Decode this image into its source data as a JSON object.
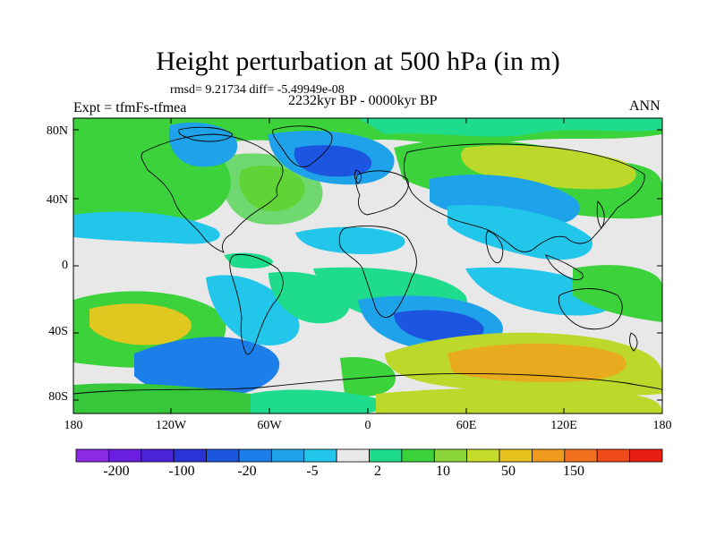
{
  "title": "Height perturbation at 500 hPa (in m)",
  "stats_line": "rmsd= 9.21734 diff= -5.49949e-08",
  "experiment": "Expt = tfmFs-tfmea",
  "period": "2232kyr BP - 0000kyr BP",
  "season": "ANN",
  "lat_ticks": [
    "80N",
    "40N",
    "0",
    "40S",
    "80S"
  ],
  "lon_ticks": [
    "180",
    "120W",
    "60W",
    "0",
    "60E",
    "120E",
    "180"
  ],
  "colorbar": {
    "labels": [
      "-200",
      "-100",
      "-20",
      "-5",
      "2",
      "10",
      "50",
      "150"
    ],
    "colors": [
      "#8a2be2",
      "#6a1ee0",
      "#4b22d8",
      "#2a33d6",
      "#1c56e0",
      "#1c7ee8",
      "#1ea3ea",
      "#22c6ea",
      "#e8e8e8",
      "#1edc8c",
      "#3cd23c",
      "#8ad63a",
      "#c6dc2c",
      "#e6c21e",
      "#f09a1e",
      "#f0701e",
      "#ee4a1a",
      "#e81e12"
    ]
  },
  "palette": {
    "ocean_bg": "#e8e8e8",
    "green_light": "#7edc5a",
    "green": "#36c83a",
    "teal": "#1edc8c",
    "yellow_green": "#bcd82a",
    "yellow": "#e0c820",
    "orange": "#e8aa1e",
    "cyan": "#22c6ea",
    "sky": "#1ea3ea",
    "blue": "#1c7ee8",
    "dark_blue": "#1c56e0"
  }
}
